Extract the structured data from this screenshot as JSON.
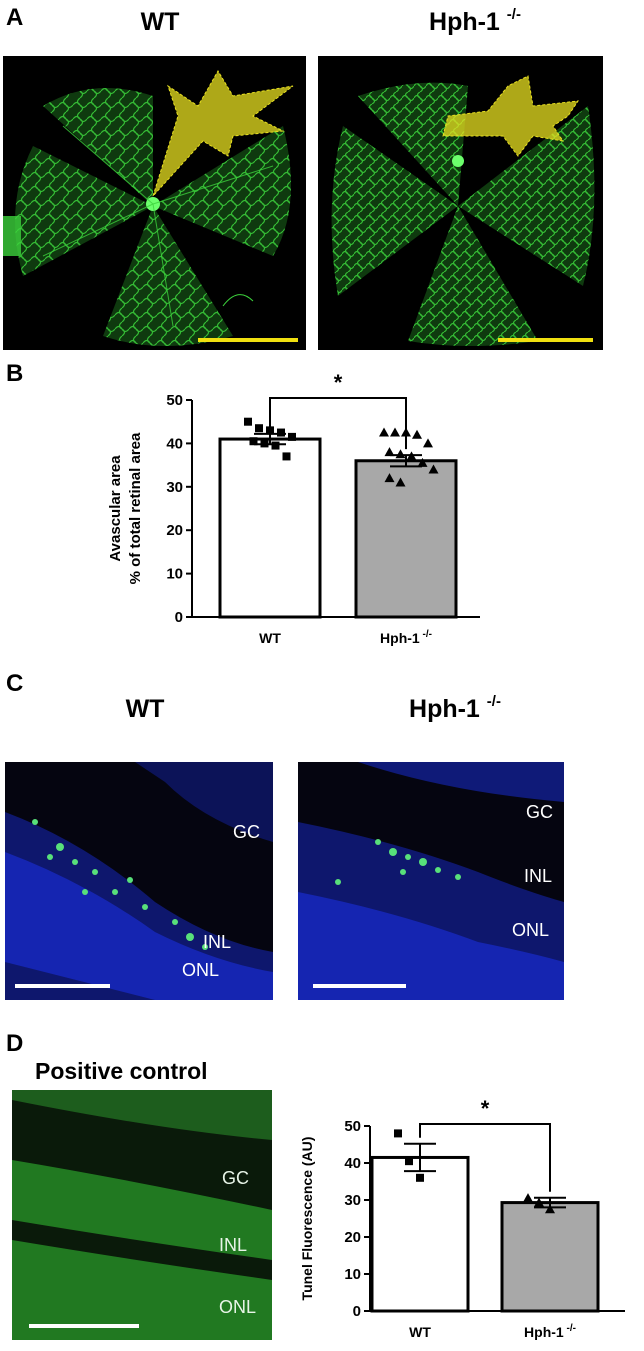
{
  "panels": {
    "a": "A",
    "b": "B",
    "c": "C",
    "d": "D"
  },
  "headers": {
    "wt": "WT",
    "hph": "Hph-1",
    "hph_sup": "-/-",
    "positive_control": "Positive control"
  },
  "layers": {
    "gc": "GC",
    "inl": "INL",
    "onl": "ONL"
  },
  "colors": {
    "vessel_green": "#3cd23c",
    "avascular_yellow": "#e8e020",
    "dapi_blue": "#1a2fe0",
    "tunel_green": "#58e07a",
    "scalebar_yellow": "#f0e010",
    "bar_grey": "#a8a8a8"
  },
  "chart_data": [
    {
      "type": "bar",
      "ylabel_line1": "Avascular area",
      "ylabel_line2": "% of total retinal area",
      "categories": [
        "WT",
        "Hph-1"
      ],
      "category_sup": [
        "",
        "-/-"
      ],
      "values": [
        41,
        36
      ],
      "errors": [
        1.2,
        1.3
      ],
      "ylim": [
        0,
        50
      ],
      "yticks": [
        "0",
        "10",
        "20",
        "30",
        "40",
        "50"
      ],
      "significance": "*",
      "points": [
        [
          45,
          43.5,
          43,
          42.5,
          41.5,
          40.5,
          40,
          39.5,
          37
        ],
        [
          42.5,
          42.5,
          42.5,
          42,
          40,
          38,
          37.5,
          37,
          35.5,
          34,
          32,
          31
        ]
      ]
    },
    {
      "type": "bar",
      "ylabel": "Tunel Fluorescence (AU)",
      "categories": [
        "WT",
        "Hph-1"
      ],
      "category_sup": [
        "",
        "-/-"
      ],
      "values": [
        41.5,
        29.3
      ],
      "errors": [
        3.7,
        1.3
      ],
      "ylim": [
        0,
        50
      ],
      "yticks": [
        "0",
        "10",
        "20",
        "30",
        "40",
        "50"
      ],
      "significance": "*",
      "points": [
        [
          48,
          40.5,
          36
        ],
        [
          30.5,
          29.3,
          27.5
        ]
      ]
    }
  ]
}
